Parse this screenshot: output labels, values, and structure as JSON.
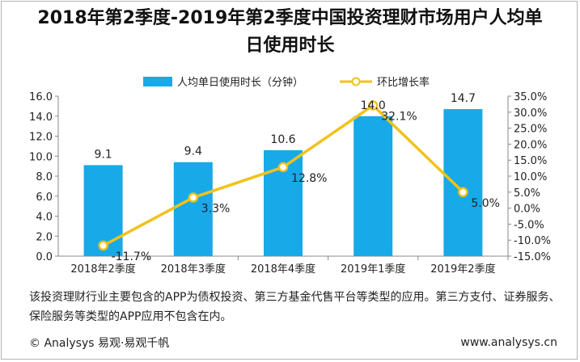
{
  "title_line1": "2018年第2季度-2019年第2季度中国投资理财市场用户人均单",
  "title_line2": "日使用时长",
  "note": "该投资理财行业主要包含的APP为债权投资、第三方基金代售平台等类型的应用。第三方支付、证券服务、保险服务等类型的APP应用不包含在内。",
  "footer_left": "© Analysys 易观·易观千帆",
  "footer_right": "www.analysys.cn",
  "colors": {
    "bar": "#17a9e8",
    "line": "#f2c21b",
    "marker_fill": "#ffffff"
  },
  "chart_data": {
    "type": "bar",
    "categories": [
      "2018年2季度",
      "2018年3季度",
      "2018年4季度",
      "2019年1季度",
      "2019年2季度"
    ],
    "series": [
      {
        "name": "人均单日使用时长（分钟）",
        "type": "bar",
        "axis": "left",
        "values": [
          9.1,
          9.4,
          10.6,
          14.0,
          14.7
        ],
        "labels": [
          "9.1",
          "9.4",
          "10.6",
          "14.0",
          "14.7"
        ]
      },
      {
        "name": "环比增长率",
        "type": "line",
        "axis": "right",
        "values": [
          -11.7,
          3.3,
          12.8,
          32.1,
          5.0
        ],
        "labels": [
          "-11.7%",
          "3.3%",
          "12.8%",
          "32.1%",
          "5.0%"
        ]
      }
    ],
    "y_left": {
      "min": 0,
      "max": 16,
      "step": 2,
      "tick_labels": [
        "0.0",
        "2.0",
        "4.0",
        "6.0",
        "8.0",
        "10.0",
        "12.0",
        "14.0",
        "16.0"
      ]
    },
    "y_right": {
      "min": -15,
      "max": 35,
      "step": 5,
      "tick_labels": [
        "-15.0%",
        "-10.0%",
        "-5.0%",
        "0.0%",
        "5.0%",
        "10.0%",
        "15.0%",
        "20.0%",
        "25.0%",
        "30.0%",
        "35.0%"
      ]
    },
    "legend_position": "top",
    "grid": false
  }
}
